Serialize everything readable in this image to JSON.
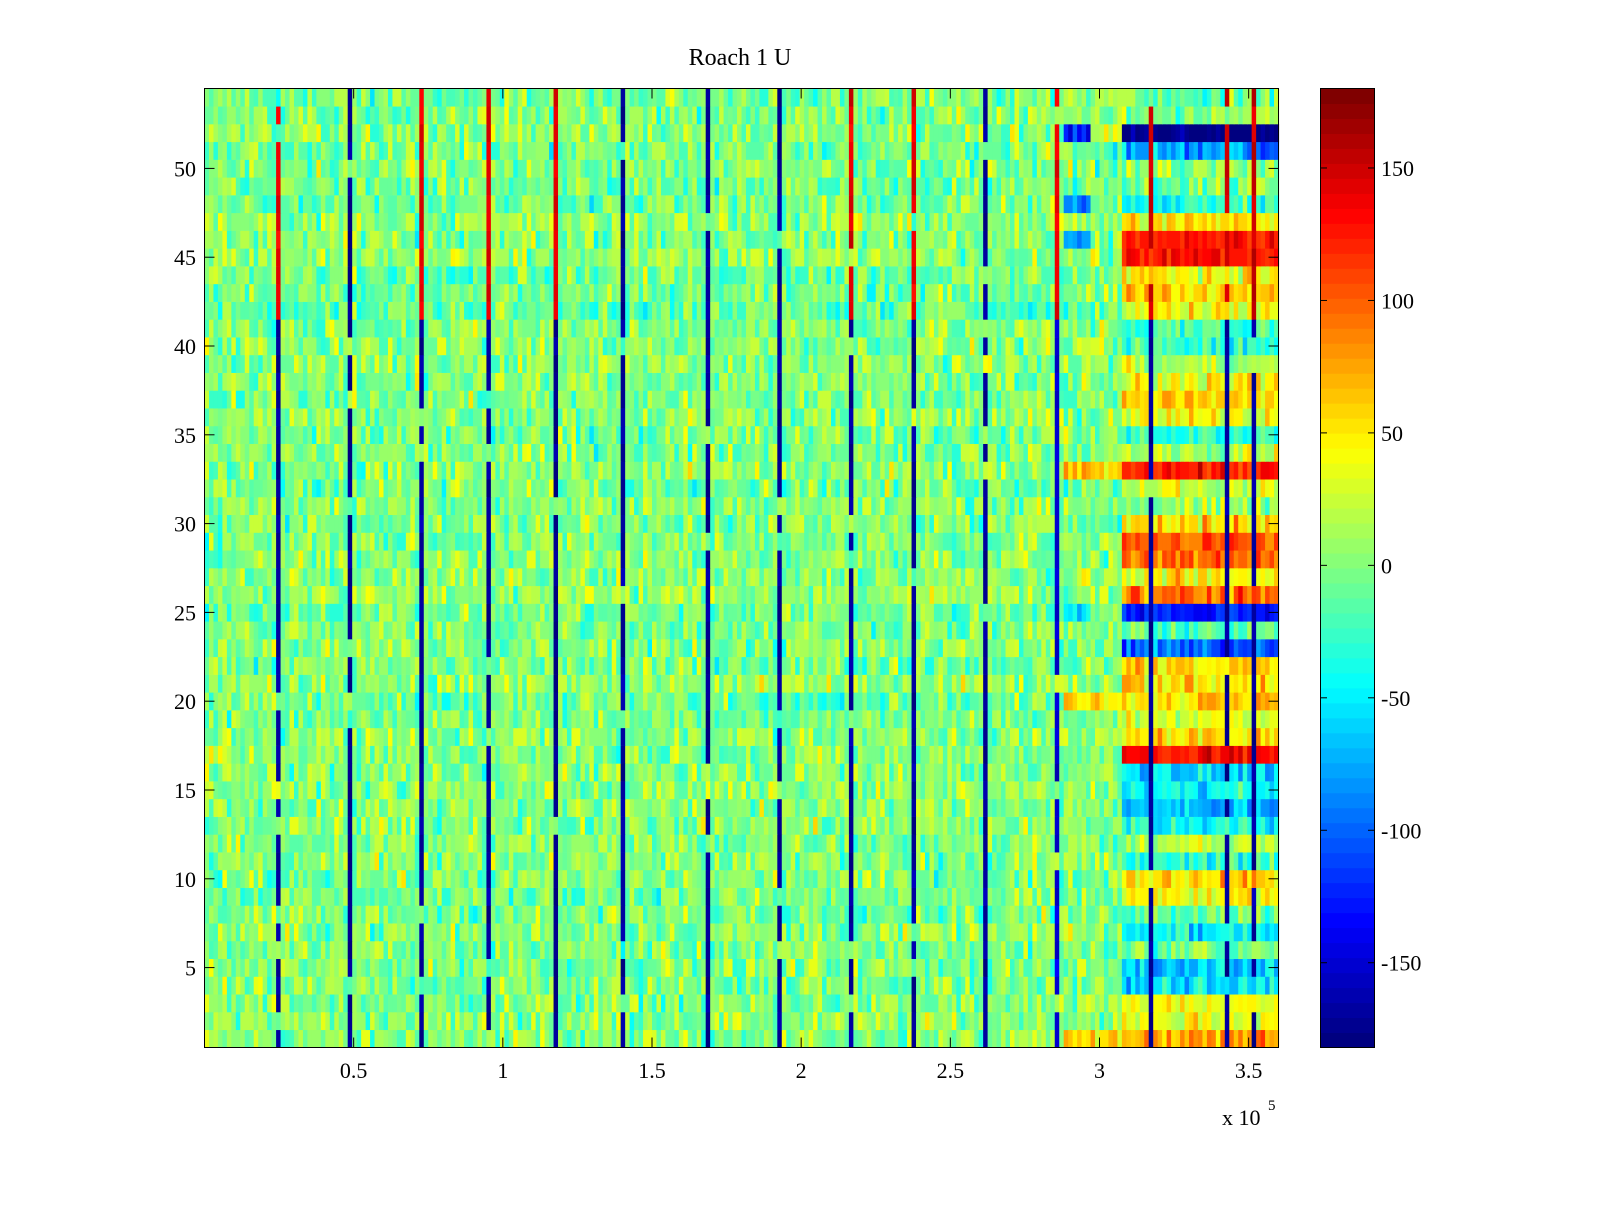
{
  "chart_data": {
    "type": "heatmap",
    "title": "Roach 1 U",
    "xlabel": "",
    "ylabel": "",
    "x_exponent_label": "x 10",
    "x_exponent": "5",
    "xlim": [
      0,
      360000
    ],
    "ylim": [
      0.5,
      54.5
    ],
    "rows": 54,
    "column_step": 1500,
    "x_ticks": [
      50000,
      100000,
      150000,
      200000,
      250000,
      300000,
      350000
    ],
    "x_tick_labels": [
      "0.5",
      "1",
      "1.5",
      "2",
      "2.5",
      "3",
      "3.5"
    ],
    "y_ticks": [
      5,
      10,
      15,
      20,
      25,
      30,
      35,
      40,
      45,
      50
    ],
    "y_tick_labels": [
      "5",
      "10",
      "15",
      "20",
      "25",
      "30",
      "35",
      "40",
      "45",
      "50"
    ],
    "colormap": "jet",
    "clim": [
      -182,
      180
    ],
    "colorbar_ticks": [
      150,
      100,
      50,
      0,
      -50,
      -100,
      -150
    ],
    "colorbar_tick_labels": [
      "150",
      "100",
      "50",
      "0",
      "-50",
      "-100",
      "-150"
    ],
    "background_noise": {
      "mean": 0,
      "spread": 28
    },
    "vertical_spikes": [
      {
        "x": 24500,
        "value": -170,
        "top_value": 140
      },
      {
        "x": 49000,
        "value": -175,
        "top_value": -175
      },
      {
        "x": 73000,
        "value": -170,
        "top_value": 140
      },
      {
        "x": 95600,
        "value": -170,
        "top_value": 140
      },
      {
        "x": 118000,
        "value": -175,
        "top_value": 140
      },
      {
        "x": 140600,
        "value": -170,
        "top_value": -170
      },
      {
        "x": 169000,
        "value": -170,
        "top_value": -170
      },
      {
        "x": 193000,
        "value": -170,
        "top_value": -170
      },
      {
        "x": 216000,
        "value": -170,
        "top_value": 140
      },
      {
        "x": 238000,
        "value": -170,
        "top_value": 140
      },
      {
        "x": 261000,
        "value": -170,
        "top_value": -170
      },
      {
        "x": 286000,
        "value": -150,
        "top_value": 140
      },
      {
        "x": 317000,
        "value": -170,
        "top_value": 150
      },
      {
        "x": 343000,
        "value": -170,
        "top_value": 150
      },
      {
        "x": 352000,
        "value": -170,
        "top_value": 150
      }
    ],
    "late_region_start": 307000,
    "late_region_rows": [
      {
        "row": 52,
        "value": -180
      },
      {
        "row": 51,
        "value": -80
      },
      {
        "row": 48,
        "value": -30
      },
      {
        "row": 47,
        "value": 50
      },
      {
        "row": 46,
        "value": 125
      },
      {
        "row": 45,
        "value": 125
      },
      {
        "row": 44,
        "value": 45
      },
      {
        "row": 43,
        "value": 60
      },
      {
        "row": 42,
        "value": 40
      },
      {
        "row": 41,
        "value": -20
      },
      {
        "row": 40,
        "value": -30
      },
      {
        "row": 39,
        "value": 20
      },
      {
        "row": 38,
        "value": 45
      },
      {
        "row": 37,
        "value": 60
      },
      {
        "row": 36,
        "value": 40
      },
      {
        "row": 35,
        "value": -30
      },
      {
        "row": 34,
        "value": 20
      },
      {
        "row": 33,
        "value": 130
      },
      {
        "row": 32,
        "value": 20
      },
      {
        "row": 30,
        "value": 60
      },
      {
        "row": 29,
        "value": 100
      },
      {
        "row": 28,
        "value": 95
      },
      {
        "row": 27,
        "value": 45
      },
      {
        "row": 26,
        "value": 90
      },
      {
        "row": 25,
        "value": -125
      },
      {
        "row": 24,
        "value": -20
      },
      {
        "row": 23,
        "value": -100
      },
      {
        "row": 22,
        "value": 55
      },
      {
        "row": 21,
        "value": 50
      },
      {
        "row": 20,
        "value": 60
      },
      {
        "row": 19,
        "value": 35
      },
      {
        "row": 18,
        "value": 55
      },
      {
        "row": 17,
        "value": 130
      },
      {
        "row": 16,
        "value": -55
      },
      {
        "row": 15,
        "value": -45
      },
      {
        "row": 14,
        "value": -70
      },
      {
        "row": 13,
        "value": -40
      },
      {
        "row": 12,
        "value": 20
      },
      {
        "row": 11,
        "value": -30
      },
      {
        "row": 10,
        "value": 60
      },
      {
        "row": 9,
        "value": 40
      },
      {
        "row": 7,
        "value": -50
      },
      {
        "row": 5,
        "value": -60
      },
      {
        "row": 4,
        "value": -50
      },
      {
        "row": 3,
        "value": 40
      },
      {
        "row": 2,
        "value": 30
      },
      {
        "row": 1,
        "value": 80
      }
    ],
    "early_late_patches": [
      {
        "x0": 288000,
        "x1": 297000,
        "row": 52,
        "value": -130
      },
      {
        "x0": 288000,
        "x1": 297000,
        "row": 48,
        "value": -90
      },
      {
        "x0": 288000,
        "x1": 297000,
        "row": 46,
        "value": -90
      },
      {
        "x0": 288000,
        "x1": 307000,
        "row": 33,
        "value": 60
      },
      {
        "x0": 288000,
        "x1": 296000,
        "row": 25,
        "value": -60
      },
      {
        "x0": 288000,
        "x1": 307000,
        "row": 20,
        "value": 60
      },
      {
        "x0": 288000,
        "x1": 307000,
        "row": 1,
        "value": 60
      }
    ]
  }
}
